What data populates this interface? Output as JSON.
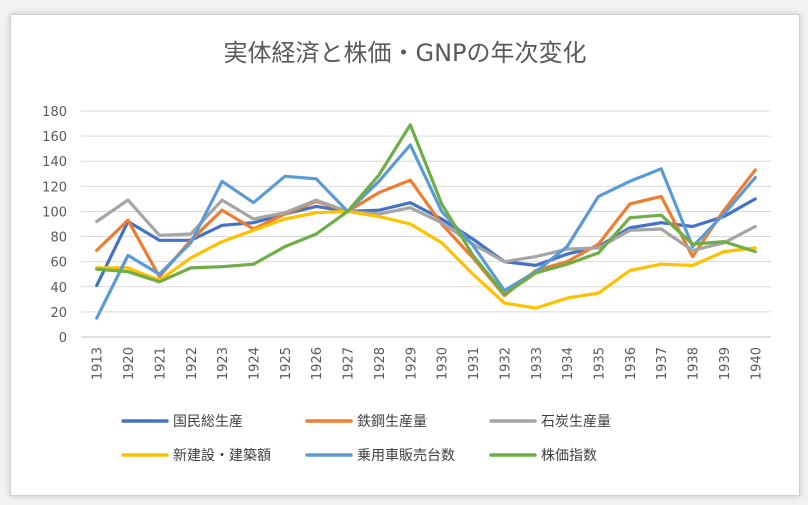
{
  "chart_data": {
    "type": "line",
    "title": "実体経済と株価・GNPの年次変化",
    "xlabel": "",
    "ylabel": "",
    "ylim": [
      0,
      180
    ],
    "yticks": [
      0,
      20,
      40,
      60,
      80,
      100,
      120,
      140,
      160,
      180
    ],
    "categories": [
      "1913",
      "1920",
      "1921",
      "1922",
      "1923",
      "1924",
      "1925",
      "1926",
      "1927",
      "1928",
      "1929",
      "1930",
      "1931",
      "1932",
      "1933",
      "1934",
      "1935",
      "1936",
      "1937",
      "1938",
      "1939",
      "1940"
    ],
    "grid": "horizontal",
    "legend_position": "bottom",
    "series": [
      {
        "name": "国民総生産",
        "color": "#4472c4",
        "values": [
          41,
          92,
          77,
          77,
          89,
          91,
          98,
          104,
          100,
          101,
          107,
          94,
          78,
          60,
          57,
          66,
          72,
          87,
          91,
          88,
          96,
          110
        ]
      },
      {
        "name": "鉄鋼生産量",
        "color": "#ed7d31",
        "values": [
          69,
          93,
          48,
          77,
          101,
          86,
          98,
          108,
          100,
          115,
          125,
          90,
          63,
          33,
          53,
          60,
          74,
          106,
          112,
          64,
          101,
          133
        ]
      },
      {
        "name": "石炭生産量",
        "color": "#a5a5a5",
        "values": [
          92,
          109,
          81,
          82,
          109,
          94,
          99,
          109,
          100,
          98,
          103,
          91,
          74,
          60,
          64,
          70,
          71,
          85,
          86,
          69,
          75,
          88
        ]
      },
      {
        "name": "新建設・建築額",
        "color": "#ffc000",
        "values": [
          55,
          55,
          45,
          63,
          76,
          85,
          94,
          99,
          100,
          96,
          90,
          75,
          50,
          27,
          23,
          31,
          35,
          53,
          58,
          57,
          68,
          71
        ]
      },
      {
        "name": "乗用車販売台数",
        "color": "#5b9bd5",
        "values": [
          15,
          65,
          50,
          75,
          124,
          107,
          128,
          126,
          100,
          124,
          153,
          100,
          73,
          37,
          52,
          72,
          112,
          124,
          134,
          72,
          98,
          127
        ]
      },
      {
        "name": "株価指数",
        "color": "#70ad47",
        "values": [
          54,
          52,
          44,
          55,
          56,
          58,
          72,
          82,
          100,
          129,
          169,
          106,
          65,
          34,
          51,
          58,
          67,
          95,
          97,
          74,
          76,
          68
        ]
      }
    ]
  }
}
